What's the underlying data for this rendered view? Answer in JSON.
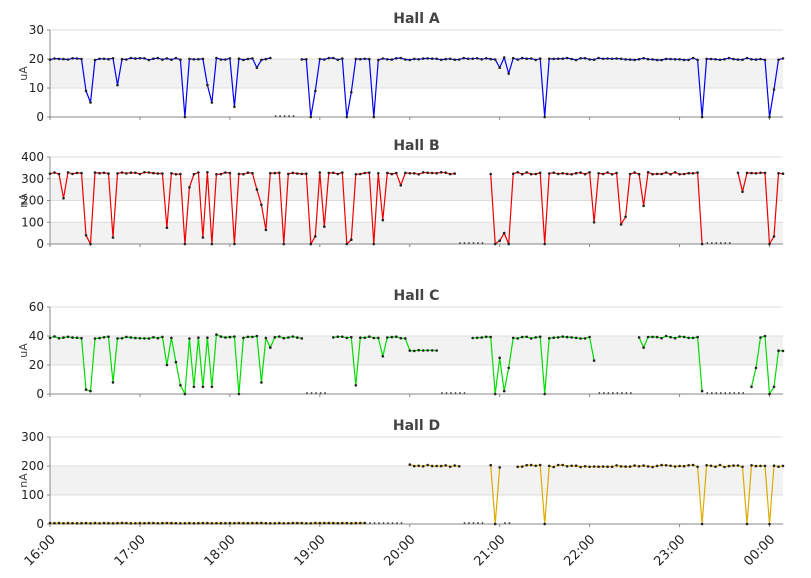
{
  "chart_data": [
    {
      "type": "line",
      "title": "Hall A",
      "ylabel": "uA",
      "ylim": [
        0,
        30
      ],
      "yticks": [
        "0",
        "10",
        "20",
        "30"
      ],
      "color": "#0000ee",
      "baseline": 20.0,
      "outages": [
        [
          2.5,
          2.75
        ]
      ],
      "dips": [
        [
          0.38,
          9
        ],
        [
          0.44,
          5
        ],
        [
          0.74,
          11
        ],
        [
          1.5,
          0
        ],
        [
          1.75,
          11
        ],
        [
          1.81,
          5
        ],
        [
          2.05,
          3.5
        ],
        [
          2.3,
          17
        ],
        [
          2.62,
          0
        ],
        [
          2.88,
          0
        ],
        [
          2.95,
          9
        ],
        [
          3.32,
          0
        ],
        [
          3.37,
          8.5
        ],
        [
          3.6,
          0
        ],
        [
          5.02,
          17
        ],
        [
          5.07,
          20.5
        ],
        [
          5.1,
          15
        ],
        [
          5.5,
          0
        ],
        [
          5.78,
          20
        ],
        [
          7.25,
          0
        ],
        [
          8.0,
          0
        ],
        [
          8.05,
          9.5
        ]
      ]
    },
    {
      "type": "line",
      "title": "Hall B",
      "ylabel": "nA",
      "ylim": [
        0,
        400
      ],
      "yticks": [
        "0",
        "100",
        "200",
        "300",
        "400"
      ],
      "color": "#ee0000",
      "baseline": 325.0,
      "outages": [
        [
          4.55,
          4.85
        ],
        [
          7.3,
          7.6
        ]
      ],
      "dips": [
        [
          0.13,
          210
        ],
        [
          0.38,
          40
        ],
        [
          0.44,
          0
        ],
        [
          0.72,
          30
        ],
        [
          1.3,
          75
        ],
        [
          1.5,
          0
        ],
        [
          1.57,
          260
        ],
        [
          1.72,
          30
        ],
        [
          1.8,
          0
        ],
        [
          2.05,
          0
        ],
        [
          2.3,
          250
        ],
        [
          2.35,
          180
        ],
        [
          2.4,
          65
        ],
        [
          2.62,
          0
        ],
        [
          2.88,
          0
        ],
        [
          2.95,
          35
        ],
        [
          3.05,
          80
        ],
        [
          3.32,
          0
        ],
        [
          3.37,
          20
        ],
        [
          3.6,
          0
        ],
        [
          3.7,
          110
        ],
        [
          3.92,
          270
        ],
        [
          4.93,
          0
        ],
        [
          5.0,
          15
        ],
        [
          5.05,
          50
        ],
        [
          5.1,
          0
        ],
        [
          5.5,
          0
        ],
        [
          6.05,
          100
        ],
        [
          6.35,
          90
        ],
        [
          6.4,
          125
        ],
        [
          6.6,
          175
        ],
        [
          7.25,
          0
        ],
        [
          7.7,
          240
        ],
        [
          8.0,
          0
        ],
        [
          8.05,
          35
        ]
      ]
    },
    {
      "type": "line",
      "title": "Hall C",
      "ylabel": "uA",
      "ylim": [
        0,
        60
      ],
      "yticks": [
        "0",
        "20",
        "40",
        "60"
      ],
      "color": "#00dd00",
      "baseline": 39.0,
      "outages": [
        [
          2.85,
          3.1
        ],
        [
          4.35,
          4.65
        ],
        [
          6.1,
          6.5
        ],
        [
          7.3,
          7.75
        ]
      ],
      "dips": [
        [
          0.38,
          3
        ],
        [
          0.44,
          2
        ],
        [
          0.72,
          8
        ],
        [
          1.3,
          20
        ],
        [
          1.4,
          22
        ],
        [
          1.45,
          6
        ],
        [
          1.5,
          0
        ],
        [
          1.58,
          5
        ],
        [
          1.68,
          5
        ],
        [
          1.78,
          5
        ],
        [
          1.83,
          41
        ],
        [
          2.1,
          0
        ],
        [
          2.3,
          40
        ],
        [
          2.35,
          8
        ],
        [
          2.45,
          32
        ],
        [
          3.4,
          6
        ],
        [
          3.7,
          26
        ],
        [
          4.93,
          0
        ],
        [
          5.0,
          25
        ],
        [
          5.05,
          2
        ],
        [
          5.1,
          18
        ],
        [
          5.5,
          0
        ],
        [
          6.05,
          23
        ],
        [
          6.6,
          32
        ],
        [
          6.85,
          40
        ],
        [
          7.25,
          2
        ],
        [
          7.35,
          5
        ],
        [
          7.8,
          5
        ],
        [
          7.85,
          18
        ],
        [
          7.95,
          40
        ],
        [
          8.0,
          0
        ],
        [
          8.05,
          5
        ]
      ],
      "levels": [
        [
          4.0,
          4.3,
          30
        ],
        [
          7.95,
          8.2,
          30
        ]
      ]
    },
    {
      "type": "line",
      "title": "Hall D",
      "ylabel": "nA",
      "ylim": [
        0,
        300
      ],
      "yticks": [
        "0",
        "100",
        "200",
        "300"
      ],
      "color": "#ddaa00",
      "xticks": [
        "16:00",
        "17:00",
        "18:00",
        "19:00",
        "20:00",
        "21:00",
        "22:00",
        "23:00",
        "00:00"
      ],
      "xlim_hours": [
        0,
        8.15
      ],
      "baseline": 200.0,
      "outages": [
        [
          3.55,
          3.95
        ],
        [
          4.6,
          4.85
        ],
        [
          5.05,
          5.15
        ]
      ],
      "dips": [
        [
          3.95,
          100
        ],
        [
          4.0,
          205
        ],
        [
          4.93,
          0
        ],
        [
          5.0,
          195
        ],
        [
          5.5,
          0
        ],
        [
          7.25,
          0
        ],
        [
          7.75,
          0
        ],
        [
          8.0,
          0
        ]
      ],
      "pre_level": 3
    }
  ]
}
